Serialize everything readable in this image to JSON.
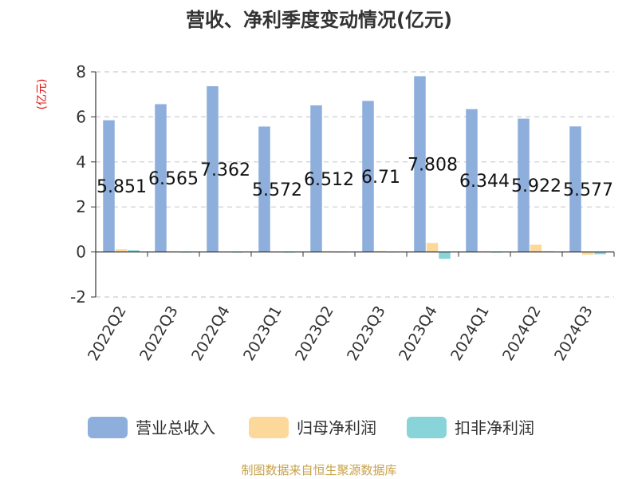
{
  "title": "营收、净利季度变动情况(亿元)",
  "source": "制图数据来自恒生聚源数据库",
  "chart_data": {
    "type": "bar",
    "title": "营收、净利季度变动情况(亿元)",
    "ylabel": "(亿元)",
    "xlabel": "",
    "ylim": [
      -2,
      8
    ],
    "yticks": [
      8,
      6,
      4,
      2,
      0,
      -2
    ],
    "grid": true,
    "legend_position": "bottom",
    "categories": [
      "2022Q2",
      "2022Q3",
      "2022Q4",
      "2023Q1",
      "2023Q2",
      "2023Q3",
      "2023Q4",
      "2024Q1",
      "2024Q2",
      "2024Q3"
    ],
    "series": [
      {
        "name": "营业总收入",
        "color": "#8eaedc",
        "values": [
          5.851,
          6.565,
          7.362,
          5.572,
          6.512,
          6.71,
          7.808,
          6.344,
          5.922,
          5.577
        ],
        "labels": [
          "5.851",
          "6.565",
          "7.362",
          "5.572",
          "6.512",
          "6.71",
          "7.808",
          "6.344",
          "5.922",
          "5.577"
        ]
      },
      {
        "name": "归母净利润",
        "color": "#fdd89b",
        "values": [
          0.12,
          0.03,
          0.02,
          0.02,
          0.03,
          0.04,
          0.4,
          0.03,
          0.32,
          -0.12
        ]
      },
      {
        "name": "扣非净利润",
        "color": "#88d4d8",
        "values": [
          0.08,
          0.01,
          0.01,
          0.01,
          0.02,
          0.02,
          -0.3,
          0.01,
          0.03,
          -0.1
        ]
      }
    ]
  }
}
